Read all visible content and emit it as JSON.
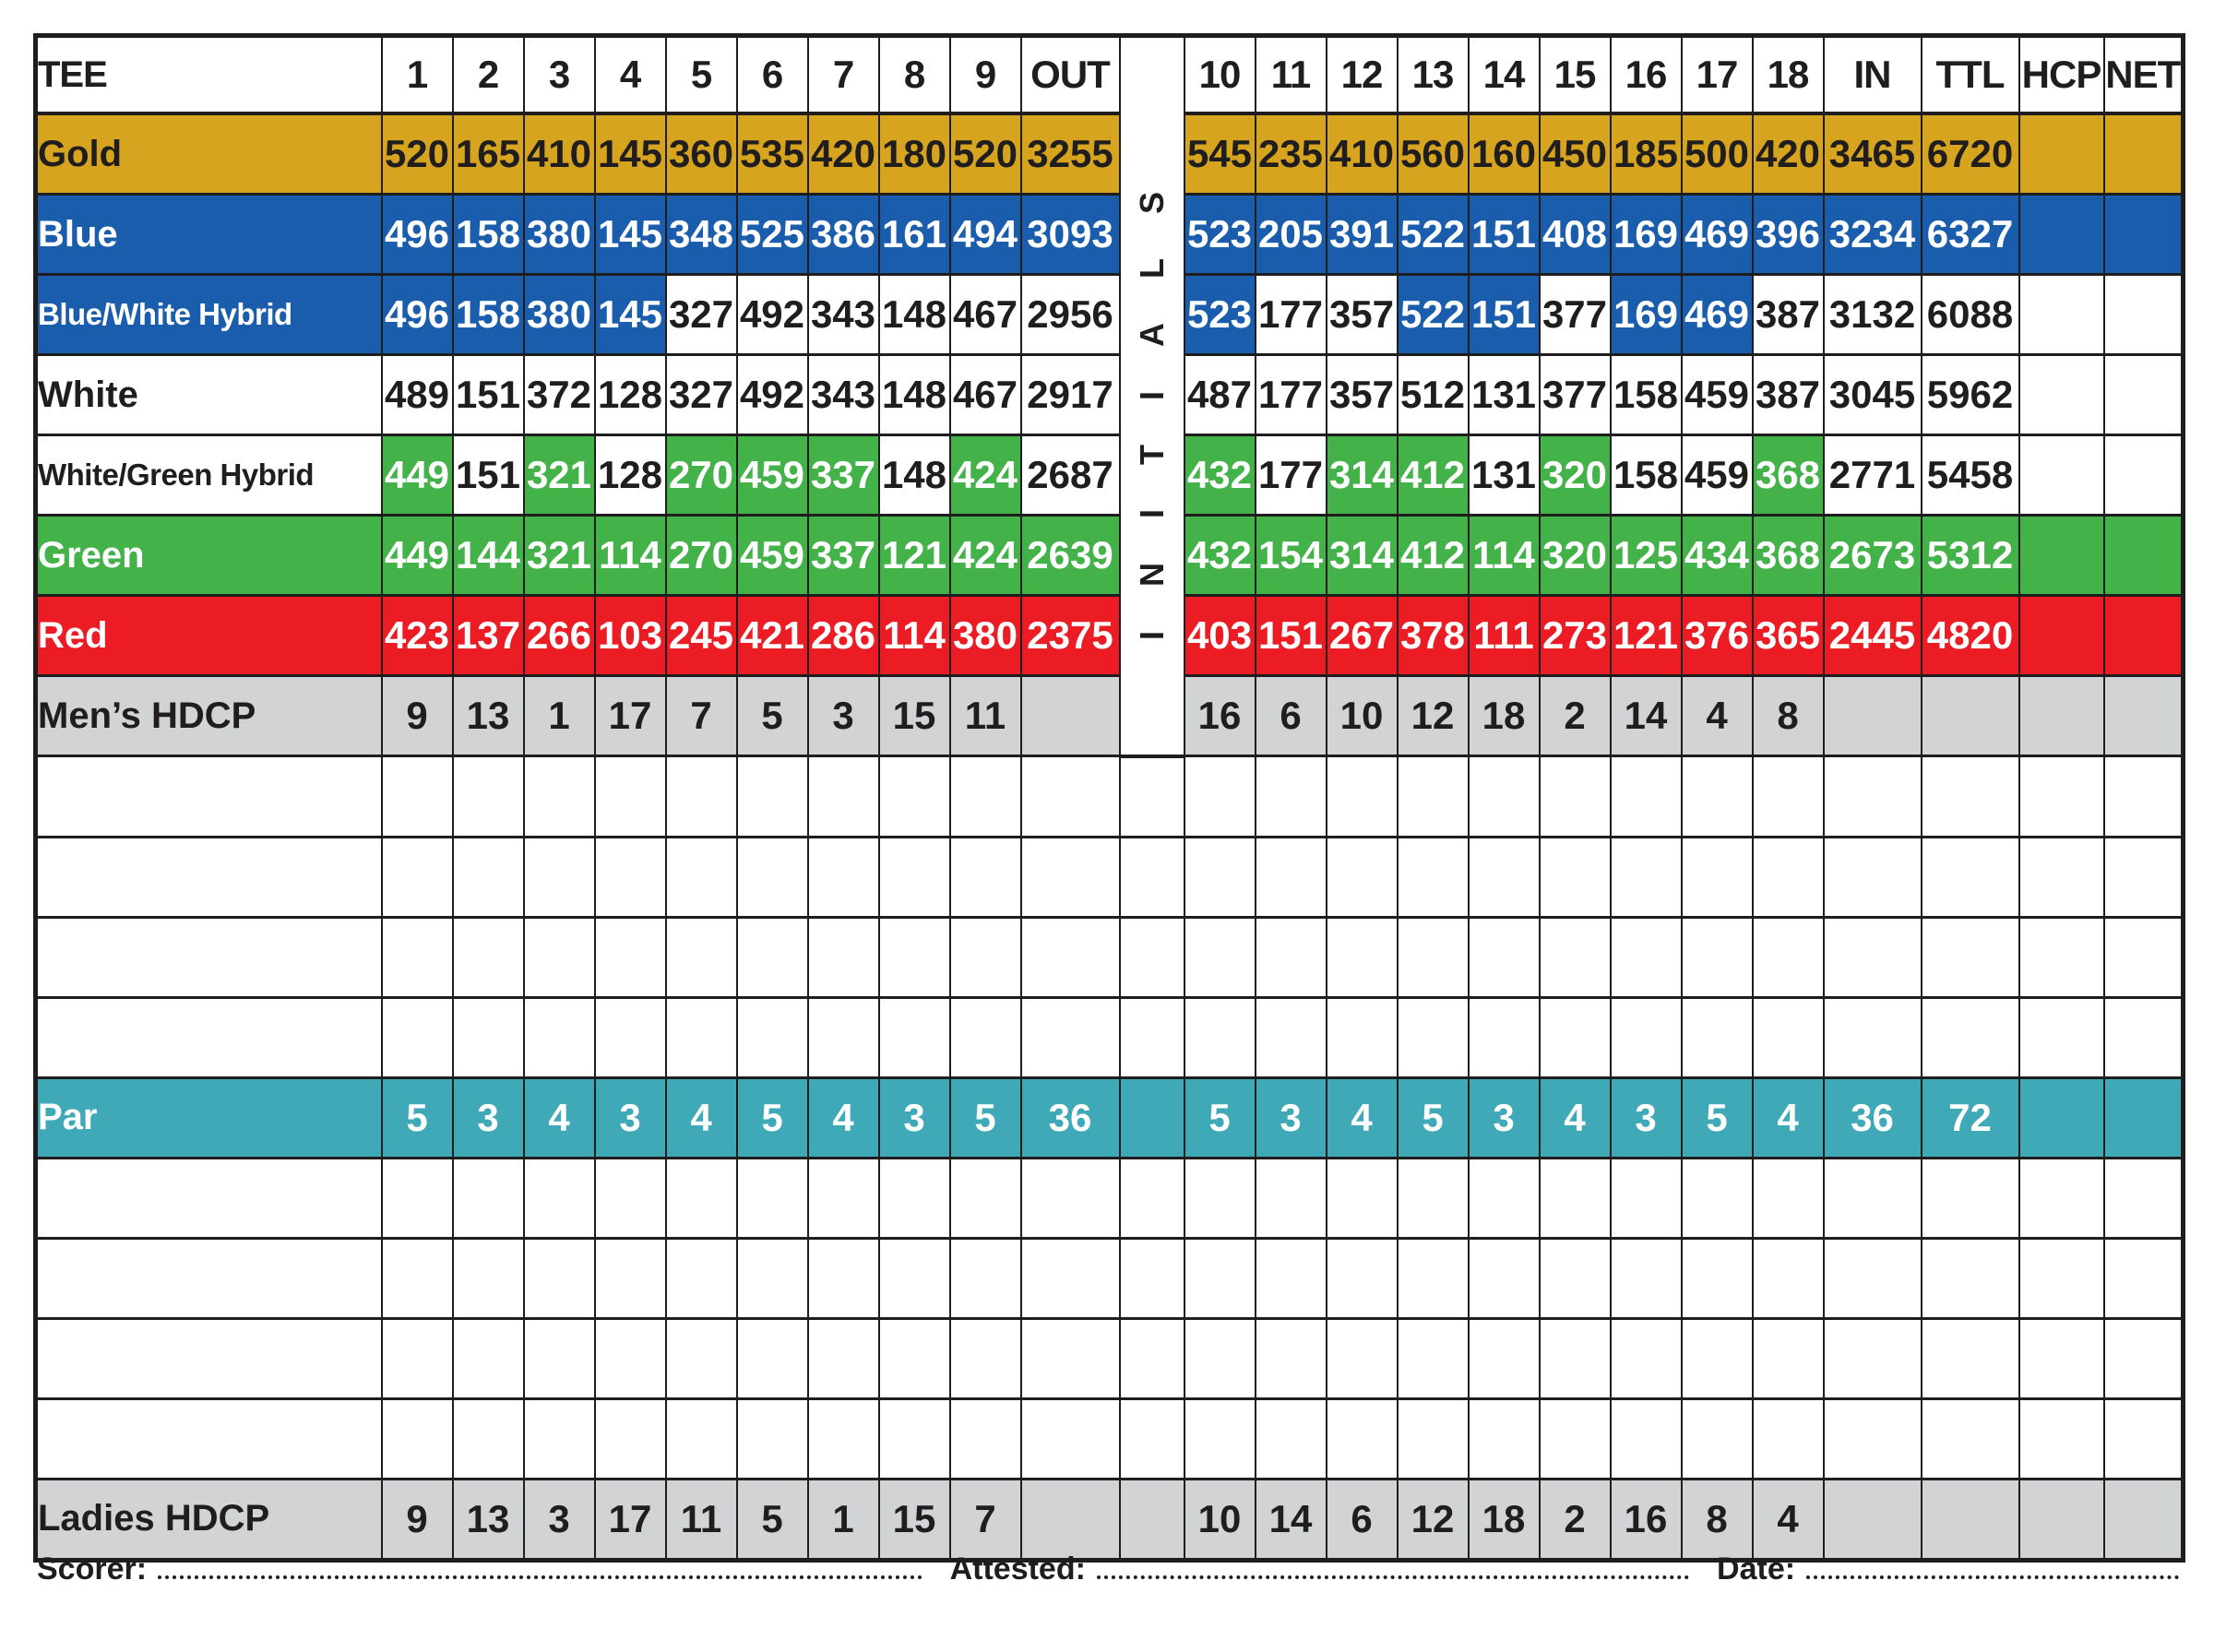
{
  "palette": {
    "gold": {
      "bg": "#D6A41E",
      "text": "#1F1D1E"
    },
    "blue": {
      "bg": "#1A5DAD",
      "text": "#FFFFFF"
    },
    "green": {
      "bg": "#43B249",
      "text": "#FFFFFF"
    },
    "red": {
      "bg": "#EC1C24",
      "text": "#FFFFFF"
    },
    "gray": {
      "bg": "#D2D3D5",
      "text": "#1F1D1E"
    },
    "teal": {
      "bg": "#3FA9B8",
      "text": "#FFFFFF"
    },
    "white": {
      "bg": "#FFFFFF",
      "text": "#1F1D1E"
    }
  },
  "header": {
    "tee": "TEE",
    "front": [
      "1",
      "2",
      "3",
      "4",
      "5",
      "6",
      "7",
      "8",
      "9"
    ],
    "out": "OUT",
    "initials": "INITIALS",
    "back": [
      "10",
      "11",
      "12",
      "13",
      "14",
      "15",
      "16",
      "17",
      "18"
    ],
    "in": "IN",
    "ttl": "TTL",
    "hcp": "HCP",
    "net": "NET"
  },
  "rows": [
    {
      "label": "Gold",
      "label_bg": "gold",
      "bgs": "gold",
      "values": [
        "520",
        "165",
        "410",
        "145",
        "360",
        "535",
        "420",
        "180",
        "520",
        "3255",
        "545",
        "235",
        "410",
        "560",
        "160",
        "450",
        "185",
        "500",
        "420",
        "3465",
        "6720",
        "",
        ""
      ]
    },
    {
      "label": "Blue",
      "label_bg": "blue",
      "bgs": "blue",
      "values": [
        "496",
        "158",
        "380",
        "145",
        "348",
        "525",
        "386",
        "161",
        "494",
        "3093",
        "523",
        "205",
        "391",
        "522",
        "151",
        "408",
        "169",
        "469",
        "396",
        "3234",
        "6327",
        "",
        ""
      ]
    },
    {
      "label": "Blue/White Hybrid",
      "label_bg": "blue",
      "bgs": [
        "blue",
        "blue",
        "blue",
        "blue",
        "white",
        "white",
        "white",
        "white",
        "white",
        "white",
        "blue",
        "white",
        "white",
        "blue",
        "blue",
        "white",
        "blue",
        "blue",
        "white",
        "white",
        "white",
        "white",
        "white"
      ],
      "values": [
        "496",
        "158",
        "380",
        "145",
        "327",
        "492",
        "343",
        "148",
        "467",
        "2956",
        "523",
        "177",
        "357",
        "522",
        "151",
        "377",
        "169",
        "469",
        "387",
        "3132",
        "6088",
        "",
        ""
      ]
    },
    {
      "label": "White",
      "label_bg": "white",
      "bgs": "white",
      "values": [
        "489",
        "151",
        "372",
        "128",
        "327",
        "492",
        "343",
        "148",
        "467",
        "2917",
        "487",
        "177",
        "357",
        "512",
        "131",
        "377",
        "158",
        "459",
        "387",
        "3045",
        "5962",
        "",
        ""
      ]
    },
    {
      "label": "White/Green Hybrid",
      "label_bg": "white",
      "bgs": [
        "green",
        "white",
        "green",
        "white",
        "green",
        "green",
        "green",
        "white",
        "green",
        "white",
        "green",
        "white",
        "green",
        "green",
        "white",
        "green",
        "white",
        "white",
        "green",
        "white",
        "white",
        "white",
        "white"
      ],
      "values": [
        "449",
        "151",
        "321",
        "128",
        "270",
        "459",
        "337",
        "148",
        "424",
        "2687",
        "432",
        "177",
        "314",
        "412",
        "131",
        "320",
        "158",
        "459",
        "368",
        "2771",
        "5458",
        "",
        ""
      ]
    },
    {
      "label": "Green",
      "label_bg": "green",
      "bgs": "green",
      "values": [
        "449",
        "144",
        "321",
        "114",
        "270",
        "459",
        "337",
        "121",
        "424",
        "2639",
        "432",
        "154",
        "314",
        "412",
        "114",
        "320",
        "125",
        "434",
        "368",
        "2673",
        "5312",
        "",
        ""
      ]
    },
    {
      "label": "Red",
      "label_bg": "red",
      "bgs": "red",
      "values": [
        "423",
        "137",
        "266",
        "103",
        "245",
        "421",
        "286",
        "114",
        "380",
        "2375",
        "403",
        "151",
        "267",
        "378",
        "111",
        "273",
        "121",
        "376",
        "365",
        "2445",
        "4820",
        "",
        ""
      ]
    },
    {
      "label": "Men’s HDCP",
      "label_bg": "gray",
      "bgs": "gray",
      "values": [
        "9",
        "13",
        "1",
        "17",
        "7",
        "5",
        "3",
        "15",
        "11",
        "",
        "16",
        "6",
        "10",
        "12",
        "18",
        "2",
        "14",
        "4",
        "8",
        "",
        "",
        "",
        ""
      ]
    },
    {
      "label": "",
      "label_bg": "white",
      "bgs": "white",
      "values": [],
      "initials_bg": "white"
    },
    {
      "label": "",
      "label_bg": "white",
      "bgs": "white",
      "values": [],
      "initials_bg": "white"
    },
    {
      "label": "",
      "label_bg": "white",
      "bgs": "white",
      "values": [],
      "initials_bg": "white"
    },
    {
      "label": "",
      "label_bg": "white",
      "bgs": "white",
      "values": [],
      "initials_bg": "white"
    },
    {
      "label": "Par",
      "label_bg": "teal",
      "bgs": "teal",
      "initials_bg": "teal",
      "values": [
        "5",
        "3",
        "4",
        "3",
        "4",
        "5",
        "4",
        "3",
        "5",
        "36",
        "5",
        "3",
        "4",
        "5",
        "3",
        "4",
        "3",
        "5",
        "4",
        "36",
        "72",
        "",
        ""
      ]
    },
    {
      "label": "",
      "label_bg": "white",
      "bgs": "white",
      "values": [],
      "initials_bg": "white"
    },
    {
      "label": "",
      "label_bg": "white",
      "bgs": "white",
      "values": [],
      "initials_bg": "white"
    },
    {
      "label": "",
      "label_bg": "white",
      "bgs": "white",
      "values": [],
      "initials_bg": "white"
    },
    {
      "label": "",
      "label_bg": "white",
      "bgs": "white",
      "values": [],
      "initials_bg": "white"
    },
    {
      "label": "Ladies HDCP",
      "label_bg": "gray",
      "bgs": "gray",
      "initials_bg": "gray",
      "values": [
        "9",
        "13",
        "3",
        "17",
        "11",
        "5",
        "1",
        "15",
        "7",
        "",
        "10",
        "14",
        "6",
        "12",
        "18",
        "2",
        "16",
        "8",
        "4",
        "",
        "",
        "",
        ""
      ]
    }
  ],
  "footer": {
    "scorer_label": "Scorer:",
    "attested_label": "Attested:",
    "date_label": "Date:"
  }
}
